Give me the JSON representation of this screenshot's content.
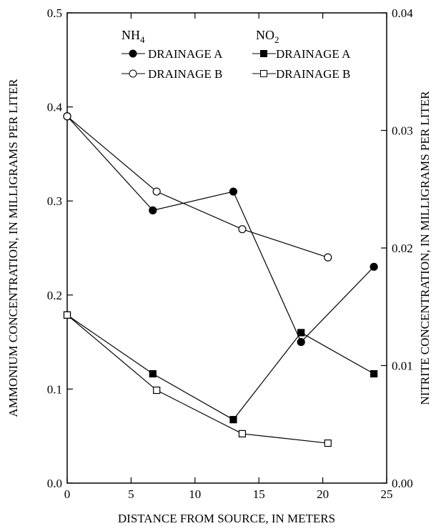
{
  "chart_data": {
    "type": "line",
    "xlabel": "DISTANCE FROM SOURCE, IN METERS",
    "ylabel_left": "AMMONIUM CONCENTRATION, IN MILLIGRAMS PER LITER",
    "ylabel_right": "NITRITE CONCENTRATION, IN MILLIGRAMS PER LITER",
    "xlim": [
      0,
      25
    ],
    "ylim_left": [
      0,
      0.5
    ],
    "ylim_right": [
      0,
      0.04
    ],
    "x_ticks": [
      "0",
      "5",
      "10",
      "15",
      "20",
      "25"
    ],
    "y_left_ticks": [
      "0.0",
      "0.1",
      "0.2",
      "0.3",
      "0.4",
      "0.5"
    ],
    "y_right_ticks": [
      "0.00",
      "0.01",
      "0.02",
      "0.03",
      "0.04"
    ],
    "legend": {
      "placement": "top",
      "group_nh4": {
        "base": "NH",
        "sub": "4"
      },
      "group_no2": {
        "base": "NO",
        "sub": "2"
      },
      "nh4_a": "DRAINAGE A",
      "nh4_b": "DRAINAGE B",
      "no2_a": "DRAINAGE A",
      "no2_b": "DRAINAGE B"
    },
    "series": [
      {
        "key": "nh4_a",
        "axis": "left",
        "marker": "circle",
        "filled": true,
        "x": [
          0,
          6.7,
          13.0,
          18.3,
          24.0
        ],
        "y": [
          0.39,
          0.29,
          0.31,
          0.15,
          0.23
        ]
      },
      {
        "key": "nh4_b",
        "axis": "left",
        "marker": "circle",
        "filled": false,
        "x": [
          0,
          7.0,
          13.7,
          20.4
        ],
        "y": [
          0.39,
          0.31,
          0.27,
          0.24
        ]
      },
      {
        "key": "no2_a",
        "axis": "right",
        "marker": "square",
        "filled": true,
        "x": [
          0,
          6.7,
          13.0,
          18.3,
          24.0
        ],
        "y": [
          0.0143,
          0.0093,
          0.0054,
          0.0128,
          0.0093
        ]
      },
      {
        "key": "no2_b",
        "axis": "right",
        "marker": "square",
        "filled": false,
        "x": [
          0,
          7.0,
          13.7,
          20.4
        ],
        "y": [
          0.0143,
          0.0079,
          0.0042,
          0.0034
        ]
      }
    ]
  }
}
